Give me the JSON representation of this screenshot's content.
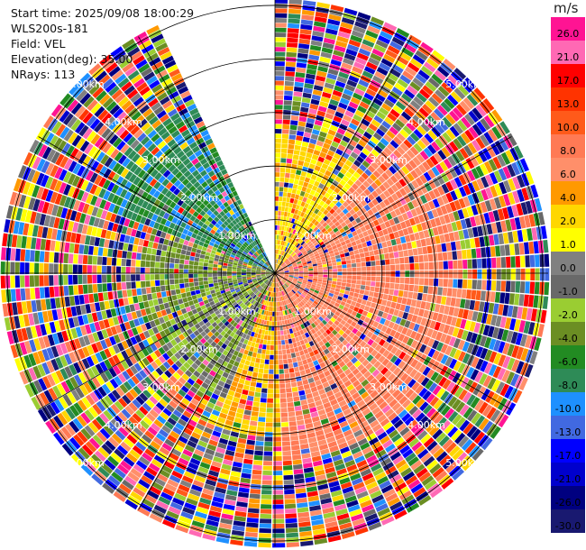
{
  "header": {
    "start_time": "Start time: 2025/09/08 18:00:29",
    "instrument": "WLS200s-181",
    "field": "Field: VEL",
    "elevation": "Elevation(deg): 35.00",
    "nrays": "NRays: 113"
  },
  "colorbar": {
    "unit": "m/s",
    "ticks": [
      "26.0",
      "21.0",
      "17.0",
      "13.0",
      "10.0",
      "8.0",
      "6.0",
      "4.0",
      "2.0",
      "1.0",
      "0.0",
      "-1.0",
      "-2.0",
      "-4.0",
      "-6.0",
      "-8.0",
      "-10.0",
      "-13.0",
      "-17.0",
      "-21.0",
      "-26.0",
      "-30.0"
    ],
    "colors": [
      "#ff1493",
      "#ff69b4",
      "#ff0000",
      "#ff3300",
      "#ff5a1a",
      "#ff7a55",
      "#ff8f6a",
      "#ff9900",
      "#ffd700",
      "#ffff00",
      "#808080",
      "#696969",
      "#9acd32",
      "#6b8e23",
      "#228b22",
      "#2e8b57",
      "#1e90ff",
      "#4169e1",
      "#0000ff",
      "#0000cd",
      "#000080",
      "#191970"
    ]
  },
  "chart_data": {
    "type": "heatmap",
    "projection": "polar (PPI)",
    "field": "VEL",
    "unit": "m/s",
    "rays": 113,
    "elevation_deg": 35.0,
    "range_rings_km": [
      1.0,
      2.0,
      3.0,
      4.0,
      5.0
    ],
    "range_ring_labels": [
      "1.00km",
      "2.00km",
      "3.00km",
      "4.00km",
      "5.00km"
    ],
    "max_range_km": 5.1,
    "missing_sector_deg": [
      335,
      360
    ],
    "color_scale_m_s": [
      -30,
      26
    ],
    "regions": [
      {
        "azimuth_deg": [
          290,
          335
        ],
        "range_km": [
          0,
          3.5
        ],
        "velocity_m_s": -7
      },
      {
        "azimuth_deg": [
          240,
          290
        ],
        "range_km": [
          0,
          2.5
        ],
        "velocity_m_s": -2
      },
      {
        "azimuth_deg": [
          200,
          240
        ],
        "range_km": [
          0,
          2.5
        ],
        "velocity_m_s": -1
      },
      {
        "azimuth_deg": [
          0,
          40
        ],
        "range_km": [
          0,
          2.5
        ],
        "velocity_m_s": 3
      },
      {
        "azimuth_deg": [
          40,
          175
        ],
        "range_km": [
          0,
          3.5
        ],
        "velocity_m_s": 8
      },
      {
        "azimuth_deg": [
          175,
          200
        ],
        "range_km": [
          0,
          3.0
        ],
        "velocity_m_s": 4
      }
    ]
  }
}
